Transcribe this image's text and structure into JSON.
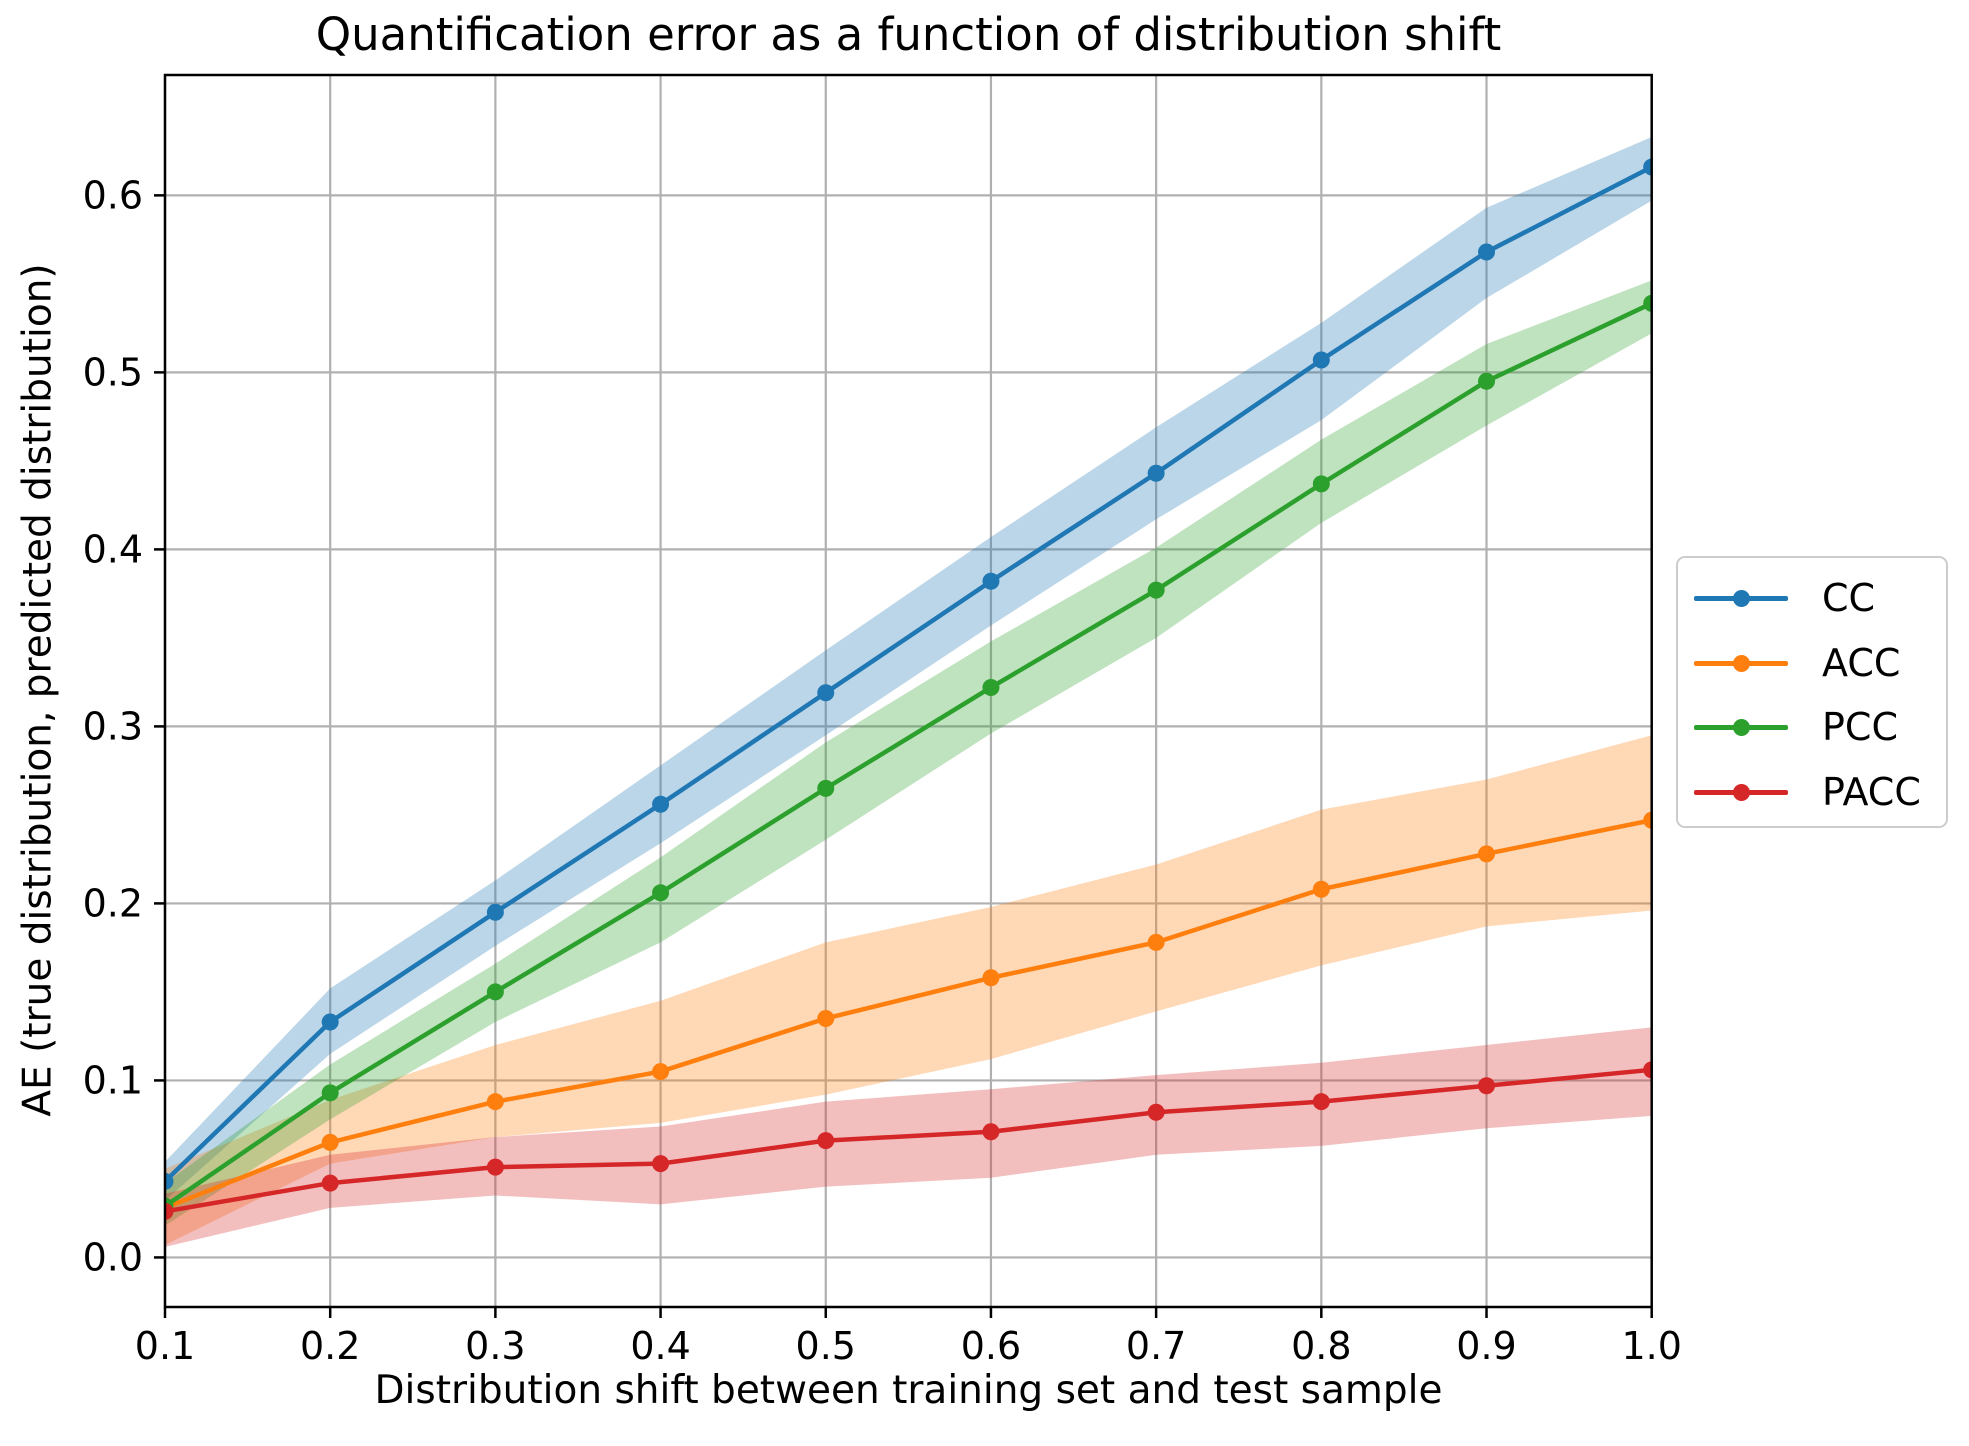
{
  "chart_data": {
    "type": "line",
    "title": "Quantification error as a function of distribution shift",
    "xlabel": "Distribution shift between training set and test sample",
    "ylabel": "AE (true distribution, predicted distribution)",
    "x": [
      0.1,
      0.2,
      0.3,
      0.4,
      0.5,
      0.6,
      0.7,
      0.8,
      0.9,
      1.0
    ],
    "xtick_labels": [
      "0.1",
      "0.2",
      "0.3",
      "0.4",
      "0.5",
      "0.6",
      "0.7",
      "0.8",
      "0.9",
      "1.0"
    ],
    "ytick_values": [
      0.0,
      0.1,
      0.2,
      0.3,
      0.4,
      0.5,
      0.6
    ],
    "ytick_labels": [
      "0.0",
      "0.1",
      "0.2",
      "0.3",
      "0.4",
      "0.5",
      "0.6"
    ],
    "xlim": [
      0.1,
      1.0
    ],
    "ylim": [
      -0.028,
      0.668
    ],
    "grid": true,
    "grid_color": "#b0b0b0",
    "legend_location": "outside center right",
    "series": [
      {
        "name": "CC",
        "color": "#1f77b4",
        "values": [
          0.043,
          0.133,
          0.195,
          0.256,
          0.319,
          0.382,
          0.443,
          0.507,
          0.568,
          0.616
        ],
        "band_lower": [
          0.032,
          0.115,
          0.176,
          0.234,
          0.295,
          0.357,
          0.417,
          0.473,
          0.542,
          0.597
        ],
        "band_upper": [
          0.054,
          0.152,
          0.213,
          0.278,
          0.343,
          0.407,
          0.469,
          0.528,
          0.593,
          0.633
        ]
      },
      {
        "name": "ACC",
        "color": "#ff7f0e",
        "values": [
          0.028,
          0.065,
          0.088,
          0.105,
          0.135,
          0.158,
          0.178,
          0.208,
          0.228,
          0.247
        ],
        "band_lower": [
          0.007,
          0.053,
          0.068,
          0.076,
          0.092,
          0.112,
          0.139,
          0.165,
          0.187,
          0.196
        ],
        "band_upper": [
          0.05,
          0.089,
          0.12,
          0.145,
          0.178,
          0.198,
          0.222,
          0.253,
          0.27,
          0.295
        ]
      },
      {
        "name": "PCC",
        "color": "#2ca02c",
        "values": [
          0.029,
          0.093,
          0.15,
          0.206,
          0.265,
          0.322,
          0.377,
          0.437,
          0.495,
          0.539
        ],
        "band_lower": [
          0.018,
          0.078,
          0.133,
          0.178,
          0.236,
          0.296,
          0.35,
          0.415,
          0.47,
          0.522
        ],
        "band_upper": [
          0.042,
          0.109,
          0.166,
          0.226,
          0.291,
          0.348,
          0.401,
          0.462,
          0.516,
          0.552
        ]
      },
      {
        "name": "PACC",
        "color": "#d62728",
        "values": [
          0.026,
          0.042,
          0.051,
          0.053,
          0.066,
          0.071,
          0.082,
          0.088,
          0.097,
          0.106
        ],
        "band_lower": [
          0.006,
          0.028,
          0.035,
          0.03,
          0.04,
          0.045,
          0.058,
          0.063,
          0.073,
          0.08
        ],
        "band_upper": [
          0.036,
          0.058,
          0.068,
          0.074,
          0.088,
          0.095,
          0.103,
          0.11,
          0.12,
          0.13
        ]
      }
    ],
    "band_opacity": 0.3
  }
}
